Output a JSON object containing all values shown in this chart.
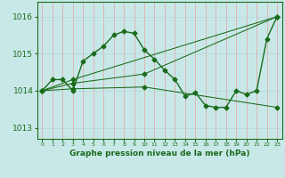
{
  "background_color": "#c8e8e8",
  "grid_color_v": "#e8a0a0",
  "grid_color_h": "#b8d8d8",
  "line_color": "#1a6b1a",
  "series": [
    {
      "x": [
        0,
        1,
        2,
        3,
        4,
        5,
        6,
        7,
        8,
        9,
        10,
        11,
        12,
        13,
        14,
        15,
        16,
        17,
        18,
        19,
        20,
        21,
        22,
        23
      ],
      "y": [
        1014.0,
        1014.3,
        1014.3,
        1014.0,
        1014.8,
        1015.0,
        1015.2,
        1015.5,
        1015.6,
        1015.55,
        1015.1,
        1014.85,
        1014.55,
        1014.3,
        1013.85,
        1013.95,
        1013.6,
        1013.55,
        1013.55,
        1014.0,
        1013.9,
        1014.0,
        1015.4,
        1016.0
      ]
    },
    {
      "x": [
        0,
        3,
        23
      ],
      "y": [
        1014.0,
        1014.3,
        1016.0
      ]
    },
    {
      "x": [
        0,
        3,
        10,
        23
      ],
      "y": [
        1014.0,
        1014.05,
        1014.1,
        1013.55
      ]
    },
    {
      "x": [
        0,
        3,
        10,
        23
      ],
      "y": [
        1014.0,
        1014.2,
        1014.45,
        1016.0
      ]
    }
  ],
  "yticks": [
    1013,
    1014,
    1015,
    1016
  ],
  "xticks": [
    0,
    1,
    2,
    3,
    4,
    5,
    6,
    7,
    8,
    9,
    10,
    11,
    12,
    13,
    14,
    15,
    16,
    17,
    18,
    19,
    20,
    21,
    22,
    23
  ],
  "ylim": [
    1012.7,
    1016.4
  ],
  "xlim": [
    -0.5,
    23.5
  ],
  "xlabel": "Graphe pression niveau de la mer (hPa)",
  "title_color": "#1a6b1a",
  "marker": "D",
  "markersize": 2.5,
  "figsize": [
    3.2,
    2.0
  ],
  "dpi": 100
}
